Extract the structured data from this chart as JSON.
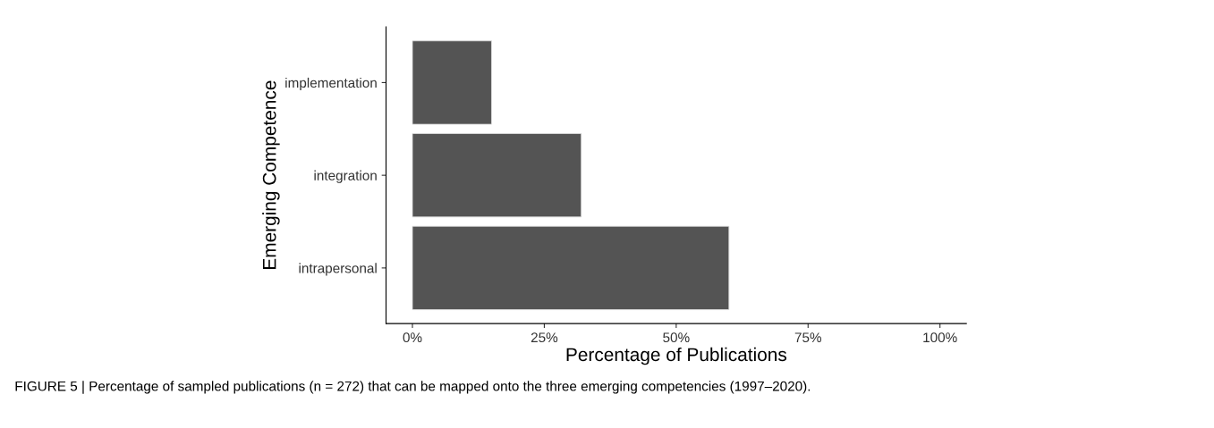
{
  "chart_data": {
    "type": "bar",
    "orientation": "horizontal",
    "categories": [
      "implementation",
      "integration",
      "intrapersonal"
    ],
    "values": [
      15,
      32,
      60
    ],
    "color": "#545454",
    "xlabel": "Percentage of Publications",
    "ylabel": "Emerging Competence",
    "xlim": [
      -5,
      105
    ],
    "xticks": [
      {
        "value": 0,
        "label": "0%"
      },
      {
        "value": 25,
        "label": "25%"
      },
      {
        "value": 50,
        "label": "50%"
      },
      {
        "value": 75,
        "label": "75%"
      },
      {
        "value": 100,
        "label": "100%"
      }
    ],
    "grid": false,
    "legend": false,
    "annotations": [
      "FIGURE 5 | Percentage of sampled publications (n = 272) that can be mapped onto the three emerging competencies (1997–2020)."
    ]
  }
}
